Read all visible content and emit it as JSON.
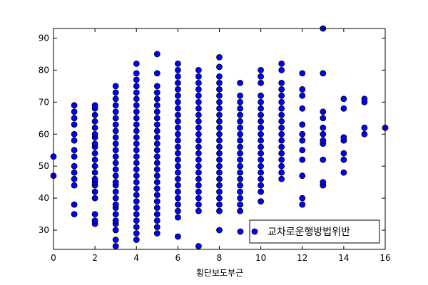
{
  "chart_data": {
    "type": "scatter",
    "title": "",
    "xlabel": "횡단보도부근",
    "ylabel": "",
    "xlim": [
      0,
      16
    ],
    "ylim": [
      24,
      93
    ],
    "xticks": [
      0,
      2,
      4,
      6,
      8,
      10,
      12,
      14,
      16
    ],
    "yticks": [
      30,
      40,
      50,
      60,
      70,
      80,
      90
    ],
    "grid": false,
    "legend_position": "lower-right",
    "series": [
      {
        "name": "교차로운행방법위반",
        "color": "#0000ff",
        "marker": "circle",
        "points": [
          [
            0,
            47
          ],
          [
            0,
            53
          ],
          [
            1,
            35
          ],
          [
            1,
            38
          ],
          [
            1,
            44
          ],
          [
            1,
            46
          ],
          [
            1,
            48
          ],
          [
            1,
            50
          ],
          [
            1,
            53
          ],
          [
            1,
            55
          ],
          [
            1,
            58
          ],
          [
            1,
            60
          ],
          [
            1,
            63
          ],
          [
            1,
            65
          ],
          [
            1,
            67
          ],
          [
            1,
            69
          ],
          [
            2,
            32
          ],
          [
            2,
            33
          ],
          [
            2,
            35
          ],
          [
            2,
            40
          ],
          [
            2,
            42
          ],
          [
            2,
            44
          ],
          [
            2,
            45
          ],
          [
            2,
            46
          ],
          [
            2,
            48
          ],
          [
            2,
            50
          ],
          [
            2,
            52
          ],
          [
            2,
            54
          ],
          [
            2,
            56
          ],
          [
            2,
            57
          ],
          [
            2,
            59
          ],
          [
            2,
            60
          ],
          [
            2,
            62
          ],
          [
            2,
            64
          ],
          [
            2,
            66
          ],
          [
            2,
            68
          ],
          [
            2,
            69
          ],
          [
            3,
            25
          ],
          [
            3,
            27
          ],
          [
            3,
            30
          ],
          [
            3,
            32
          ],
          [
            3,
            33
          ],
          [
            3,
            35
          ],
          [
            3,
            37
          ],
          [
            3,
            38
          ],
          [
            3,
            40
          ],
          [
            3,
            42
          ],
          [
            3,
            44
          ],
          [
            3,
            45
          ],
          [
            3,
            47
          ],
          [
            3,
            49
          ],
          [
            3,
            51
          ],
          [
            3,
            53
          ],
          [
            3,
            55
          ],
          [
            3,
            57
          ],
          [
            3,
            59
          ],
          [
            3,
            61
          ],
          [
            3,
            63
          ],
          [
            3,
            65
          ],
          [
            3,
            67
          ],
          [
            3,
            69
          ],
          [
            3,
            71
          ],
          [
            3,
            73
          ],
          [
            3,
            75
          ],
          [
            4,
            27
          ],
          [
            4,
            29
          ],
          [
            4,
            31
          ],
          [
            4,
            33
          ],
          [
            4,
            35
          ],
          [
            4,
            37
          ],
          [
            4,
            39
          ],
          [
            4,
            41
          ],
          [
            4,
            43
          ],
          [
            4,
            45
          ],
          [
            4,
            47
          ],
          [
            4,
            49
          ],
          [
            4,
            51
          ],
          [
            4,
            53
          ],
          [
            4,
            55
          ],
          [
            4,
            57
          ],
          [
            4,
            59
          ],
          [
            4,
            61
          ],
          [
            4,
            63
          ],
          [
            4,
            65
          ],
          [
            4,
            67
          ],
          [
            4,
            69
          ],
          [
            4,
            71
          ],
          [
            4,
            73
          ],
          [
            4,
            75
          ],
          [
            4,
            77
          ],
          [
            4,
            79
          ],
          [
            4,
            82
          ],
          [
            5,
            29
          ],
          [
            5,
            31
          ],
          [
            5,
            33
          ],
          [
            5,
            35
          ],
          [
            5,
            37
          ],
          [
            5,
            39
          ],
          [
            5,
            41
          ],
          [
            5,
            43
          ],
          [
            5,
            45
          ],
          [
            5,
            47
          ],
          [
            5,
            49
          ],
          [
            5,
            51
          ],
          [
            5,
            53
          ],
          [
            5,
            55
          ],
          [
            5,
            57
          ],
          [
            5,
            59
          ],
          [
            5,
            61
          ],
          [
            5,
            63
          ],
          [
            5,
            65
          ],
          [
            5,
            67
          ],
          [
            5,
            69
          ],
          [
            5,
            71
          ],
          [
            5,
            73
          ],
          [
            5,
            75
          ],
          [
            5,
            79
          ],
          [
            5,
            85
          ],
          [
            6,
            28
          ],
          [
            6,
            34
          ],
          [
            6,
            36
          ],
          [
            6,
            38
          ],
          [
            6,
            40
          ],
          [
            6,
            42
          ],
          [
            6,
            44
          ],
          [
            6,
            46
          ],
          [
            6,
            48
          ],
          [
            6,
            50
          ],
          [
            6,
            52
          ],
          [
            6,
            54
          ],
          [
            6,
            56
          ],
          [
            6,
            58
          ],
          [
            6,
            60
          ],
          [
            6,
            62
          ],
          [
            6,
            64
          ],
          [
            6,
            66
          ],
          [
            6,
            68
          ],
          [
            6,
            70
          ],
          [
            6,
            72
          ],
          [
            6,
            74
          ],
          [
            6,
            76
          ],
          [
            6,
            78
          ],
          [
            6,
            80
          ],
          [
            6,
            82
          ],
          [
            7,
            25
          ],
          [
            7,
            36
          ],
          [
            7,
            38
          ],
          [
            7,
            40
          ],
          [
            7,
            42
          ],
          [
            7,
            44
          ],
          [
            7,
            46
          ],
          [
            7,
            48
          ],
          [
            7,
            50
          ],
          [
            7,
            52
          ],
          [
            7,
            54
          ],
          [
            7,
            56
          ],
          [
            7,
            58
          ],
          [
            7,
            60
          ],
          [
            7,
            62
          ],
          [
            7,
            64
          ],
          [
            7,
            66
          ],
          [
            7,
            68
          ],
          [
            7,
            70
          ],
          [
            7,
            72
          ],
          [
            7,
            74
          ],
          [
            7,
            76
          ],
          [
            7,
            78
          ],
          [
            7,
            80
          ],
          [
            8,
            30
          ],
          [
            8,
            36
          ],
          [
            8,
            38
          ],
          [
            8,
            40
          ],
          [
            8,
            42
          ],
          [
            8,
            44
          ],
          [
            8,
            46
          ],
          [
            8,
            48
          ],
          [
            8,
            50
          ],
          [
            8,
            52
          ],
          [
            8,
            54
          ],
          [
            8,
            56
          ],
          [
            8,
            58
          ],
          [
            8,
            60
          ],
          [
            8,
            62
          ],
          [
            8,
            64
          ],
          [
            8,
            66
          ],
          [
            8,
            68
          ],
          [
            8,
            70
          ],
          [
            8,
            72
          ],
          [
            8,
            74
          ],
          [
            8,
            76
          ],
          [
            8,
            78
          ],
          [
            8,
            81
          ],
          [
            8,
            84
          ],
          [
            9,
            36
          ],
          [
            9,
            38
          ],
          [
            9,
            40
          ],
          [
            9,
            42
          ],
          [
            9,
            44
          ],
          [
            9,
            46
          ],
          [
            9,
            48
          ],
          [
            9,
            50
          ],
          [
            9,
            52
          ],
          [
            9,
            54
          ],
          [
            9,
            56
          ],
          [
            9,
            58
          ],
          [
            9,
            60
          ],
          [
            9,
            62
          ],
          [
            9,
            64
          ],
          [
            9,
            66
          ],
          [
            9,
            68
          ],
          [
            9,
            70
          ],
          [
            9,
            72
          ],
          [
            9,
            76
          ],
          [
            10,
            39
          ],
          [
            10,
            42
          ],
          [
            10,
            44
          ],
          [
            10,
            46
          ],
          [
            10,
            48
          ],
          [
            10,
            50
          ],
          [
            10,
            52
          ],
          [
            10,
            54
          ],
          [
            10,
            56
          ],
          [
            10,
            58
          ],
          [
            10,
            60
          ],
          [
            10,
            62
          ],
          [
            10,
            64
          ],
          [
            10,
            66
          ],
          [
            10,
            68
          ],
          [
            10,
            70
          ],
          [
            10,
            72
          ],
          [
            10,
            76
          ],
          [
            10,
            78
          ],
          [
            10,
            80
          ],
          [
            11,
            46
          ],
          [
            11,
            48
          ],
          [
            11,
            50
          ],
          [
            11,
            52
          ],
          [
            11,
            54
          ],
          [
            11,
            56
          ],
          [
            11,
            58
          ],
          [
            11,
            60
          ],
          [
            11,
            62
          ],
          [
            11,
            64
          ],
          [
            11,
            66
          ],
          [
            11,
            68
          ],
          [
            11,
            70
          ],
          [
            11,
            72
          ],
          [
            11,
            74
          ],
          [
            11,
            76
          ],
          [
            11,
            80
          ],
          [
            11,
            82
          ],
          [
            12,
            38
          ],
          [
            12,
            40
          ],
          [
            12,
            47
          ],
          [
            12,
            52
          ],
          [
            12,
            55
          ],
          [
            12,
            58
          ],
          [
            12,
            60
          ],
          [
            12,
            63
          ],
          [
            12,
            68
          ],
          [
            12,
            72
          ],
          [
            12,
            74
          ],
          [
            12,
            79
          ],
          [
            13,
            44
          ],
          [
            13,
            45
          ],
          [
            13,
            52
          ],
          [
            13,
            57
          ],
          [
            13,
            58
          ],
          [
            13,
            60
          ],
          [
            13,
            62
          ],
          [
            13,
            65
          ],
          [
            13,
            67
          ],
          [
            13,
            79
          ],
          [
            13,
            93
          ],
          [
            14,
            48
          ],
          [
            14,
            52
          ],
          [
            14,
            54
          ],
          [
            14,
            58
          ],
          [
            14,
            59
          ],
          [
            14,
            68
          ],
          [
            14,
            71
          ],
          [
            15,
            60
          ],
          [
            15,
            62
          ],
          [
            15,
            70
          ],
          [
            15,
            71
          ],
          [
            16,
            62
          ]
        ]
      }
    ]
  }
}
